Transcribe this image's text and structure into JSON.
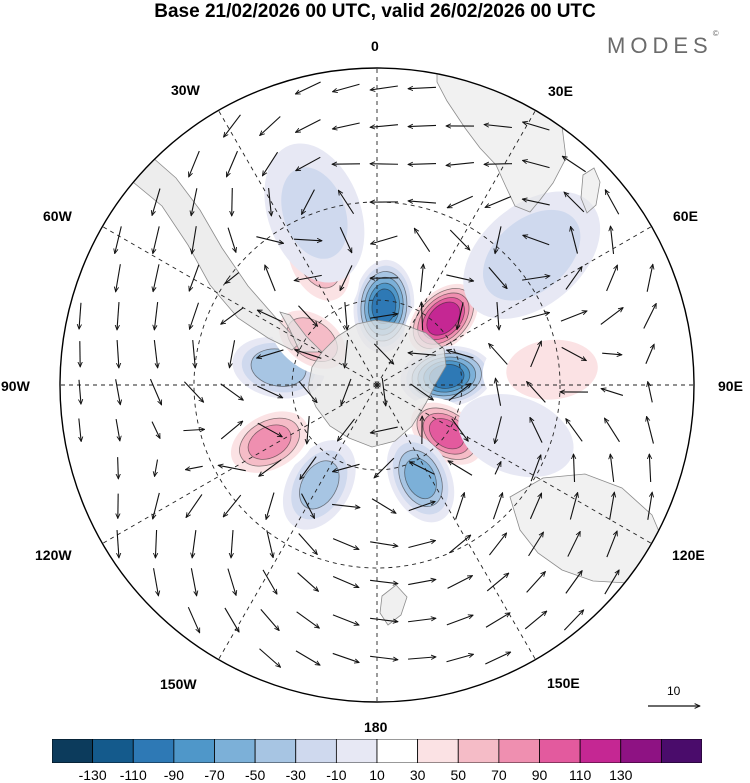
{
  "header": {
    "title": "Base 21/02/2026 00 UTC, valid 26/02/2026 00 UTC",
    "brand": "MODES",
    "brand_mark": "©"
  },
  "map": {
    "projection": "south polar stereographic",
    "longitude_labels": {
      "lon_0": "0",
      "lon_30e": "30E",
      "lon_60e": "60E",
      "lon_90e": "90E",
      "lon_120e": "120E",
      "lon_150e": "150E",
      "lon_180": "180",
      "lon_150w": "150W",
      "lon_120w": "120W",
      "lon_90w": "90W",
      "lon_60w": "60W",
      "lon_30w": "30W"
    },
    "anomaly_centers": [
      {
        "lon": 5,
        "lat": -62,
        "value": -120
      },
      {
        "lon": 45,
        "lat": -57,
        "value": 130
      },
      {
        "lon": 83,
        "lat": -65,
        "value": -120
      },
      {
        "lon": 125,
        "lat": -60,
        "value": 100
      },
      {
        "lon": 155,
        "lat": -54,
        "value": -80
      },
      {
        "lon": -150,
        "lat": -50,
        "value": -60
      },
      {
        "lon": -118,
        "lat": -48,
        "value": 80
      },
      {
        "lon": -80,
        "lat": -55,
        "value": -70
      },
      {
        "lon": -55,
        "lat": -62,
        "value": 70
      },
      {
        "lon": -25,
        "lat": -43,
        "value": 60
      },
      {
        "lon": -20,
        "lat": -30,
        "value": -40
      },
      {
        "lon": 50,
        "lat": -25,
        "value": -50
      },
      {
        "lon": 85,
        "lat": -32,
        "value": 40
      },
      {
        "lon": 110,
        "lat": -40,
        "value": -30
      }
    ],
    "vector_reference": {
      "value": "10"
    }
  },
  "colorbar": {
    "colors": [
      "#0c3b5c",
      "#145a8c",
      "#2e79b5",
      "#4f97c9",
      "#7cb0d8",
      "#a7c5e3",
      "#cfd9ee",
      "#e7e8f4",
      "#ffffff",
      "#fbe2e4",
      "#f5bcc7",
      "#ef8fb0",
      "#e35a9e",
      "#c52793",
      "#8e1283",
      "#4a0c6b"
    ],
    "tick_labels": [
      "-130",
      "-110",
      "-90",
      "-70",
      "-50",
      "-30",
      "-10",
      "10",
      "30",
      "50",
      "70",
      "90",
      "110",
      "130"
    ]
  }
}
